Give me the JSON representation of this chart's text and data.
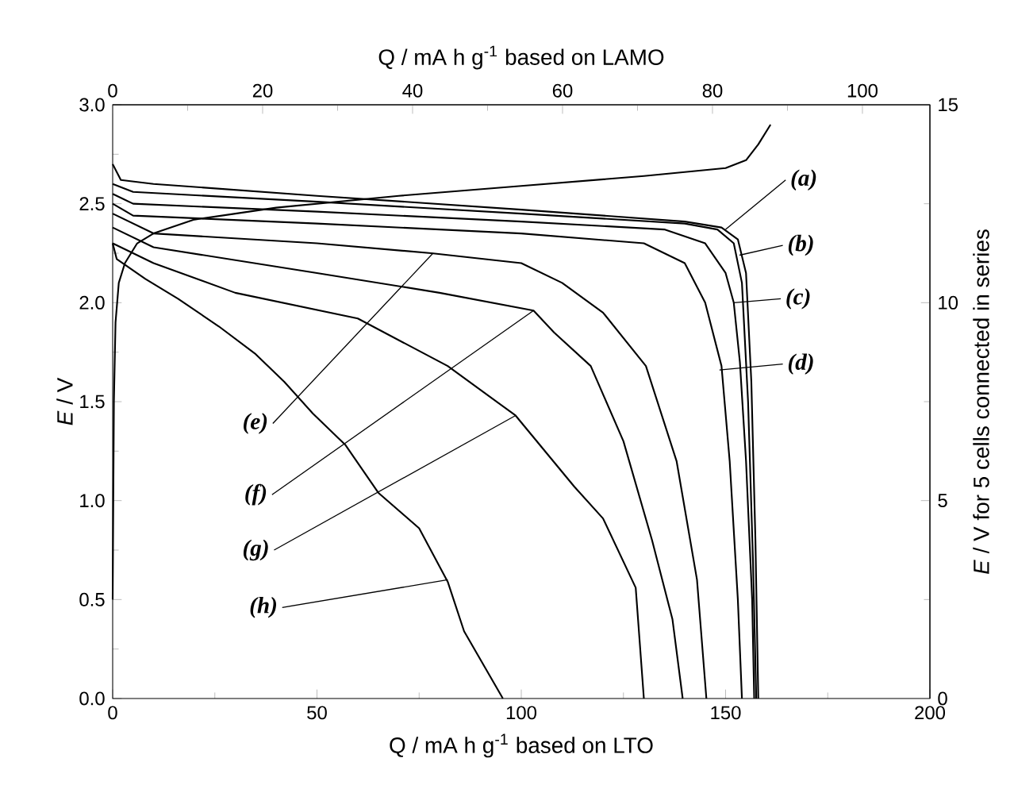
{
  "chart_data": {
    "type": "line",
    "xlabel": "Q  /  mA h g$^{-1}$ based on LTO",
    "x2label": "Q  /  mA h g$^{-1}$ based on LAMO",
    "ylabel": "*E* / V",
    "y2label": "*E* / V for 5 cells connected in series",
    "xlim": [
      0,
      200
    ],
    "xticks": [
      0,
      50,
      100,
      150,
      200
    ],
    "ylim": [
      0,
      3
    ],
    "yticks": [
      {
        "value": 0,
        "label": "0.0"
      },
      {
        "value": 0.5,
        "label": "0.5"
      },
      {
        "value": 1,
        "label": "1.0"
      },
      {
        "value": 1.5,
        "label": "1.5"
      },
      {
        "value": 2,
        "label": "2.0"
      },
      {
        "value": 2.5,
        "label": "2.5"
      },
      {
        "value": 3,
        "label": "3.0"
      }
    ],
    "x2lim": [
      0,
      109
    ],
    "x2ticks": [
      0,
      20,
      40,
      60,
      80,
      100
    ],
    "y2lim": [
      0,
      15
    ],
    "y2ticks": [
      0,
      5,
      10,
      15
    ],
    "grid": false,
    "marker": "none",
    "line_style": "solid",
    "annotations": [
      {
        "text": "(a)",
        "x": 150,
        "y": 2.37
      },
      {
        "text": "(b)",
        "x": 153.4,
        "y": 2.24
      },
      {
        "text": "(c)",
        "x": 152,
        "y": 2.0
      },
      {
        "text": "(d)",
        "x": 148.5,
        "y": 1.66
      },
      {
        "text": "(e)",
        "x": 78.4,
        "y": 2.25
      },
      {
        "text": "(f)",
        "x": 103,
        "y": 1.96
      },
      {
        "text": "(g)",
        "x": 98.6,
        "y": 1.43
      },
      {
        "text": "(h)",
        "x": 82,
        "y": 0.6
      }
    ],
    "series": [
      {
        "color": "#000000",
        "x": [
          0,
          2,
          10,
          50,
          100,
          140,
          149,
          153,
          155,
          156.3,
          157.3,
          158
        ],
        "values": [
          2.7,
          2.62,
          2.6,
          2.54,
          2.47,
          2.41,
          2.38,
          2.32,
          2.15,
          1.6,
          0.8,
          0
        ]
      },
      {
        "color": "#000000",
        "x": [
          0,
          5,
          50,
          100,
          140,
          148,
          152,
          154,
          155.5,
          156.7,
          157.5
        ],
        "values": [
          2.6,
          2.56,
          2.51,
          2.45,
          2.4,
          2.37,
          2.3,
          2.1,
          1.5,
          0.7,
          0
        ]
      },
      {
        "color": "#000000",
        "x": [
          0,
          5,
          50,
          100,
          135,
          145,
          150,
          152,
          153.5,
          155,
          156.5,
          157
        ],
        "values": [
          2.55,
          2.5,
          2.46,
          2.41,
          2.37,
          2.3,
          2.15,
          2.0,
          1.7,
          1.2,
          0.5,
          0
        ]
      },
      {
        "color": "#000000",
        "x": [
          0,
          5,
          50,
          100,
          130,
          140,
          145,
          149,
          151,
          153,
          154
        ],
        "values": [
          2.5,
          2.44,
          2.4,
          2.35,
          2.3,
          2.2,
          2.0,
          1.68,
          1.2,
          0.5,
          0
        ]
      },
      {
        "color": "#000000",
        "x": [
          0,
          10,
          50,
          78,
          100,
          110,
          120,
          130.5,
          138,
          143,
          145.3
        ],
        "values": [
          2.45,
          2.35,
          2.3,
          2.25,
          2.2,
          2.1,
          1.95,
          1.68,
          1.2,
          0.6,
          0
        ]
      },
      {
        "color": "#000000",
        "x": [
          0,
          10,
          50,
          80,
          103,
          108,
          117,
          125,
          132,
          137,
          139.5
        ],
        "values": [
          2.38,
          2.28,
          2.15,
          2.05,
          1.96,
          1.85,
          1.68,
          1.3,
          0.8,
          0.4,
          0
        ]
      },
      {
        "color": "#000000",
        "x": [
          0,
          10,
          30,
          60,
          82,
          98.6,
          113,
          120,
          128,
          130
        ],
        "values": [
          2.3,
          2.2,
          2.05,
          1.92,
          1.68,
          1.43,
          1.07,
          0.91,
          0.56,
          0
        ]
      },
      {
        "color": "#000000",
        "x": [
          0,
          1,
          8,
          16,
          26,
          35,
          42,
          49,
          57,
          65,
          75,
          82,
          86,
          95.5
        ],
        "values": [
          2.3,
          2.22,
          2.12,
          2.02,
          1.88,
          1.74,
          1.6,
          1.44,
          1.28,
          1.04,
          0.86,
          0.59,
          0.34,
          0
        ]
      },
      {
        "color": "#000000",
        "x": [
          0,
          0.3,
          0.7,
          1.5,
          3,
          6,
          10,
          20,
          40,
          70,
          100,
          130,
          150,
          155,
          158,
          161
        ],
        "values": [
          0.5,
          1.5,
          1.9,
          2.1,
          2.2,
          2.3,
          2.35,
          2.42,
          2.48,
          2.54,
          2.59,
          2.64,
          2.68,
          2.72,
          2.8,
          2.9
        ]
      }
    ]
  }
}
